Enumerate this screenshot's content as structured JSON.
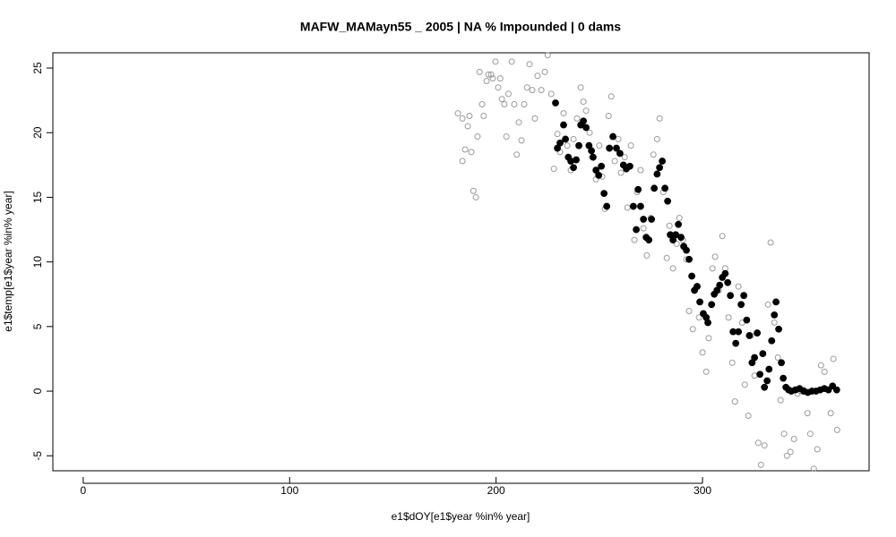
{
  "chart_data": {
    "type": "scatter",
    "title": "MAFW_MAMayn55 _ 2005   |   NA  % Impounded |  0  dams",
    "x_label": "e1$dOY[e1$year %in% year]",
    "y_label": "e1$temp[e1$year %in% year]",
    "xlim": [
      -14.7,
      380.7
    ],
    "ylim": [
      -6.16,
      26.18
    ],
    "xticks": [
      0,
      100,
      200,
      300
    ],
    "yticks": [
      -5,
      0,
      5,
      10,
      15,
      20,
      25
    ],
    "series": [
      {
        "color": "#9a9a9a",
        "filled": false,
        "x": [
          181.5,
          183.7,
          183.7,
          185,
          186.3,
          187.1,
          188,
          189,
          190.2,
          191,
          192,
          193.2,
          194,
          195.4,
          196.3,
          197.6,
          198.4,
          199.7,
          201,
          202,
          202.8,
          204,
          205,
          206,
          207.6,
          208.8,
          210,
          211,
          212.3,
          213.6,
          215,
          216.2,
          217.5,
          218.8,
          220.1,
          221.9,
          223.6,
          225,
          226.7,
          228,
          229.7,
          231,
          232.7,
          234.5,
          236.2,
          237.5,
          239.2,
          241,
          242.3,
          243.6,
          245.3,
          246.6,
          248.4,
          250,
          251.4,
          252.7,
          254.5,
          255.8,
          257.5,
          259.2,
          260.5,
          262.3,
          263.6,
          265.3,
          267,
          268.3,
          270,
          271.4,
          273,
          274.9,
          276.2,
          278,
          279.2,
          281,
          282.7,
          284,
          285.7,
          287.5,
          288.8,
          290.5,
          292.2,
          293.5,
          295.3,
          297,
          298.3,
          300,
          301.8,
          303,
          304.8,
          306.1,
          307.9,
          309.6,
          311,
          312.6,
          314.4,
          315.7,
          317.4,
          319.2,
          320.5,
          322.2,
          323.5,
          325.2,
          327,
          328.3,
          330,
          331.7,
          333,
          334.8,
          336.5,
          337.8,
          339.5,
          340.9,
          342.6,
          344.3,
          346,
          347.4,
          349,
          350.8,
          352.2,
          353.9,
          355.6,
          357.4,
          359.1,
          360.8,
          362.1,
          363.4,
          365.2
        ],
        "values": [
          21.5,
          21.1,
          17.8,
          18.7,
          20.5,
          21.3,
          18.5,
          15.5,
          15.0,
          19.7,
          24.7,
          22.2,
          21.3,
          24.0,
          24.5,
          24.5,
          24.2,
          25.5,
          23.5,
          24.2,
          22.6,
          22.2,
          19.7,
          23.0,
          25.5,
          22.2,
          18.3,
          20.8,
          19.4,
          22.2,
          23.5,
          25.3,
          23.3,
          21.1,
          24.4,
          23.3,
          24.7,
          26.0,
          23.0,
          17.2,
          19.9,
          18.5,
          21.5,
          19.0,
          17.1,
          19.5,
          21.1,
          23.5,
          22.4,
          21.7,
          20.0,
          18.1,
          16.4,
          19.0,
          16.6,
          14.1,
          21.3,
          22.8,
          17.8,
          19.5,
          16.9,
          18.1,
          14.2,
          19.0,
          11.7,
          15.4,
          17.1,
          12.6,
          10.5,
          13.4,
          18.3,
          19.5,
          21.1,
          15.4,
          10.3,
          12.8,
          9.5,
          11.4,
          13.4,
          11.7,
          10.2,
          6.2,
          4.8,
          8.1,
          5.7,
          3.0,
          1.5,
          4.1,
          9.5,
          10.4,
          7.8,
          12.0,
          9.5,
          5.7,
          2.2,
          -0.8,
          8.1,
          5.3,
          0.5,
          -1.9,
          4.3,
          1.2,
          -4.0,
          -5.7,
          -4.2,
          6.7,
          11.5,
          5.3,
          2.6,
          -0.7,
          -3.3,
          -5.0,
          -4.7,
          -3.7,
          -0.2,
          0,
          0.1,
          -1.7,
          -3.3,
          -6.0,
          -4.5,
          2.0,
          1.5,
          0.1,
          -1.7,
          2.5,
          -3.0
        ]
      },
      {
        "color": "#000000",
        "filled": true,
        "x": [
          228.8,
          229.7,
          231,
          232.7,
          233.6,
          235,
          236.2,
          237.5,
          238.8,
          240.1,
          241,
          242.3,
          243.6,
          245,
          246.2,
          247,
          248.4,
          249.7,
          251,
          252.3,
          253.6,
          254.9,
          256.6,
          258.3,
          260,
          261.7,
          263.1,
          264.8,
          266.5,
          267.9,
          268.8,
          270,
          271.4,
          272.7,
          274,
          275.3,
          276.6,
          278,
          279.2,
          280.5,
          281.8,
          283.1,
          284.4,
          285.7,
          287,
          288.3,
          289.6,
          290.9,
          292.2,
          293.5,
          294.8,
          296.1,
          297.4,
          298.7,
          300.4,
          301.8,
          302.6,
          304.4,
          305.7,
          307,
          308.3,
          309.6,
          311,
          312.2,
          313.5,
          314.8,
          316.1,
          317.4,
          318.7,
          320,
          321.4,
          322.7,
          324,
          325.2,
          326.5,
          327.8,
          329.2,
          330,
          331.3,
          332.2,
          333.5,
          334.8,
          335.6,
          336.9,
          338.2,
          339.1,
          340.4,
          341.7,
          343,
          345,
          347,
          349,
          351,
          353,
          355,
          357,
          359,
          361,
          363,
          365
        ],
        "values": [
          22.3,
          18.8,
          19.2,
          20.6,
          19.5,
          18.1,
          17.8,
          17.3,
          17.9,
          19.0,
          20.6,
          20.9,
          20.4,
          19.0,
          18.6,
          18.1,
          17.1,
          16.7,
          17.4,
          15.3,
          14.3,
          18.8,
          19.7,
          18.8,
          18.4,
          17.5,
          17.2,
          17.4,
          14.3,
          12.5,
          15.6,
          14.3,
          13.3,
          11.9,
          11.7,
          13.3,
          15.7,
          16.8,
          17.3,
          17.8,
          15.7,
          14.7,
          12.1,
          11.7,
          12.1,
          12.9,
          11.9,
          11.2,
          10.9,
          10.2,
          8.9,
          7.8,
          8.1,
          6.9,
          6.0,
          5.7,
          5.3,
          6.7,
          7.5,
          7.8,
          8.2,
          8.8,
          9.1,
          8.4,
          7.4,
          4.6,
          3.7,
          4.6,
          6.7,
          7.4,
          5.5,
          4.3,
          2.2,
          2.6,
          4.5,
          1.3,
          2.9,
          0.3,
          0.8,
          1.7,
          3.9,
          5.9,
          6.9,
          4.8,
          2.2,
          1.0,
          0.3,
          0.1,
          0.0,
          0.1,
          0.2,
          0.0,
          -0.1,
          0.0,
          0.0,
          0.1,
          0.2,
          0.1,
          0.4,
          0.1
        ]
      }
    ]
  }
}
